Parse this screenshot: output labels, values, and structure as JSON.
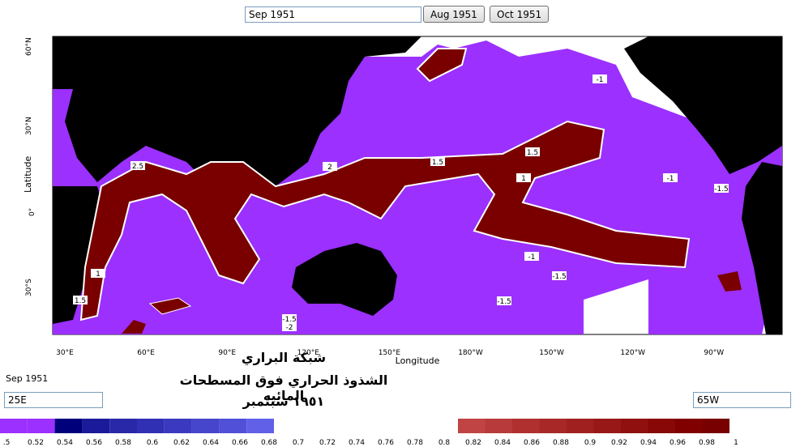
{
  "controls": {
    "date": "Sep 1951",
    "prev": "Aug 1951",
    "next": "Oct 1951",
    "date_label": "Sep 1951",
    "lon_min": "25E",
    "lon_max": "65W"
  },
  "map": {
    "y_axis_label": "Latitude",
    "x_axis_label": "Longitude",
    "lat_labels": [
      "60°N",
      "30°N",
      "0°",
      "30°S"
    ],
    "lon_labels": [
      "30°E",
      "60°E",
      "90°E",
      "120°E",
      "150°E",
      "180°W",
      "150°W",
      "120°W",
      "90°W"
    ],
    "contour_labels": [
      "-1",
      "1.5",
      "1.5",
      "2",
      "1",
      "-1",
      "-1.5",
      "-1",
      "-1.5",
      "-1.5",
      "1",
      "1.5",
      "-1.5",
      "-2",
      "2.5"
    ]
  },
  "title": {
    "lines": [
      "شبكة البراري",
      "الشذوذ الحراري فوق المسطحات المائيه",
      "١٩٥١ سبتمبر"
    ]
  },
  "colorbar": {
    "labels": [
      ".5",
      "0.52",
      "0.54",
      "0.56",
      "0.58",
      "0.6",
      "0.62",
      "0.64",
      "0.66",
      "0.68",
      "0.7",
      "0.72",
      "0.74",
      "0.76",
      "0.78",
      "0.8",
      "0.82",
      "0.84",
      "0.86",
      "0.88",
      "0.9",
      "0.92",
      "0.94",
      "0.96",
      "0.98",
      "1"
    ]
  }
}
